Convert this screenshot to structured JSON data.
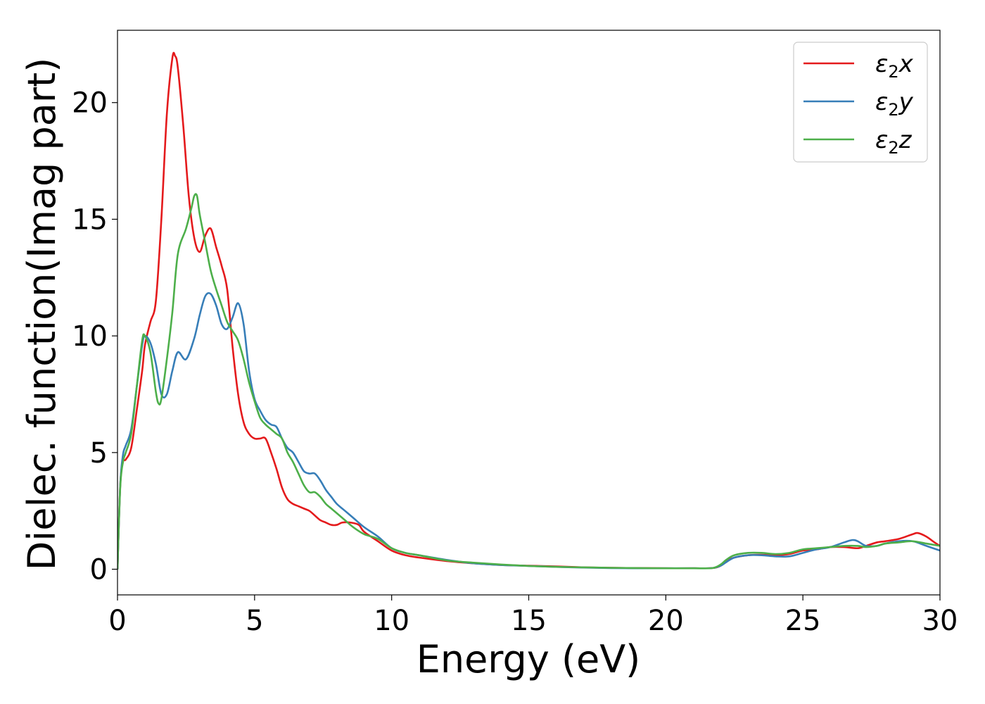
{
  "chart_data": {
    "type": "line",
    "xlabel": "Energy (eV)",
    "ylabel": "Dielec. function(Imag part)",
    "xlim": [
      0,
      30
    ],
    "ylim": [
      -1.1,
      23.1
    ],
    "xticks": [
      0,
      5,
      10,
      15,
      20,
      25,
      30
    ],
    "yticks": [
      0,
      5,
      10,
      15,
      20
    ],
    "grid": false,
    "legend_position": "top-right",
    "series": [
      {
        "name": "ε₂x",
        "legend": {
          "base": "ε",
          "sub": "2",
          "letter": "x"
        },
        "color": "#e41a1c",
        "x": [
          0,
          0.1,
          0.2,
          0.3,
          0.5,
          0.7,
          0.9,
          1.0,
          1.2,
          1.4,
          1.6,
          1.8,
          2.0,
          2.1,
          2.2,
          2.4,
          2.6,
          2.8,
          3.0,
          3.2,
          3.4,
          3.6,
          3.8,
          4.0,
          4.2,
          4.4,
          4.6,
          4.8,
          5.0,
          5.2,
          5.4,
          5.6,
          5.8,
          6.0,
          6.2,
          6.4,
          6.6,
          6.8,
          7.0,
          7.2,
          7.4,
          7.6,
          7.8,
          8.0,
          8.2,
          8.5,
          8.8,
          9.0,
          9.5,
          10.0,
          10.5,
          11.0,
          12.0,
          13.0,
          14.0,
          15.0,
          16.0,
          17.0,
          18.0,
          19.0,
          20.0,
          21.0,
          21.7,
          22.0,
          22.2,
          22.5,
          23.0,
          23.5,
          24.0,
          24.5,
          25.0,
          25.5,
          26.0,
          26.5,
          27.0,
          27.3,
          27.7,
          28.0,
          28.5,
          29.0,
          29.2,
          29.5,
          29.8,
          30.0
        ],
        "y": [
          0,
          3.6,
          4.6,
          4.7,
          5.2,
          6.8,
          8.5,
          9.6,
          10.6,
          11.5,
          15.0,
          19.5,
          21.9,
          22.0,
          21.5,
          19.0,
          16.0,
          14.2,
          13.6,
          14.3,
          14.6,
          13.8,
          13.0,
          12.0,
          9.5,
          7.5,
          6.3,
          5.8,
          5.6,
          5.6,
          5.6,
          5.0,
          4.3,
          3.5,
          3.0,
          2.8,
          2.7,
          2.6,
          2.5,
          2.3,
          2.1,
          2.0,
          1.9,
          1.9,
          2.0,
          2.0,
          1.9,
          1.6,
          1.2,
          0.8,
          0.6,
          0.5,
          0.35,
          0.25,
          0.18,
          0.15,
          0.12,
          0.08,
          0.06,
          0.05,
          0.04,
          0.04,
          0.05,
          0.15,
          0.35,
          0.5,
          0.6,
          0.62,
          0.6,
          0.65,
          0.8,
          0.85,
          0.95,
          0.95,
          0.9,
          1.0,
          1.15,
          1.2,
          1.3,
          1.5,
          1.55,
          1.4,
          1.15,
          1.0
        ]
      },
      {
        "name": "ε₂y",
        "legend": {
          "base": "ε",
          "sub": "2",
          "letter": "y"
        },
        "color": "#377eb8",
        "x": [
          0,
          0.1,
          0.2,
          0.3,
          0.5,
          0.7,
          0.9,
          1.0,
          1.2,
          1.4,
          1.6,
          1.8,
          2.0,
          2.2,
          2.5,
          2.8,
          3.0,
          3.2,
          3.4,
          3.6,
          3.8,
          4.0,
          4.2,
          4.4,
          4.6,
          4.8,
          5.0,
          5.2,
          5.4,
          5.6,
          5.8,
          6.0,
          6.2,
          6.4,
          6.6,
          6.8,
          7.0,
          7.2,
          7.4,
          7.6,
          7.8,
          8.0,
          8.3,
          8.6,
          9.0,
          9.5,
          10.0,
          10.5,
          11.0,
          12.0,
          13.0,
          14.0,
          15.0,
          16.0,
          17.0,
          18.0,
          19.0,
          20.0,
          21.0,
          21.7,
          22.0,
          22.2,
          22.5,
          23.0,
          23.5,
          24.0,
          24.5,
          25.0,
          25.5,
          26.0,
          26.5,
          26.8,
          27.0,
          27.3,
          27.7,
          28.0,
          28.5,
          29.0,
          29.5,
          30.0
        ],
        "y": [
          0,
          3.6,
          4.9,
          5.3,
          6.0,
          7.8,
          9.6,
          10.0,
          9.7,
          8.8,
          7.5,
          7.5,
          8.5,
          9.3,
          9.0,
          9.9,
          10.9,
          11.7,
          11.8,
          11.3,
          10.5,
          10.3,
          10.8,
          11.4,
          10.5,
          8.5,
          7.3,
          6.8,
          6.4,
          6.2,
          6.1,
          5.6,
          5.2,
          5.0,
          4.6,
          4.2,
          4.1,
          4.1,
          3.8,
          3.4,
          3.1,
          2.8,
          2.5,
          2.2,
          1.8,
          1.4,
          0.9,
          0.7,
          0.6,
          0.4,
          0.25,
          0.18,
          0.14,
          0.1,
          0.07,
          0.05,
          0.04,
          0.04,
          0.04,
          0.05,
          0.15,
          0.3,
          0.5,
          0.6,
          0.6,
          0.55,
          0.55,
          0.7,
          0.85,
          0.95,
          1.15,
          1.25,
          1.2,
          1.0,
          1.0,
          1.1,
          1.2,
          1.2,
          1.0,
          0.8
        ]
      },
      {
        "name": "ε₂z",
        "legend": {
          "base": "ε",
          "sub": "2",
          "letter": "z"
        },
        "color": "#4daf4a",
        "x": [
          0,
          0.1,
          0.2,
          0.3,
          0.5,
          0.7,
          0.9,
          1.0,
          1.2,
          1.4,
          1.5,
          1.6,
          1.8,
          2.0,
          2.2,
          2.5,
          2.7,
          2.8,
          2.9,
          3.0,
          3.2,
          3.4,
          3.6,
          3.8,
          4.0,
          4.2,
          4.4,
          4.6,
          4.8,
          5.0,
          5.2,
          5.4,
          5.6,
          5.8,
          6.0,
          6.2,
          6.4,
          6.6,
          6.8,
          7.0,
          7.2,
          7.4,
          7.6,
          7.8,
          8.0,
          8.3,
          8.6,
          9.0,
          9.5,
          10.0,
          10.5,
          11.0,
          12.0,
          13.0,
          14.0,
          15.0,
          16.0,
          17.0,
          18.0,
          19.0,
          20.0,
          21.0,
          21.7,
          22.0,
          22.2,
          22.5,
          23.0,
          23.5,
          24.0,
          24.5,
          25.0,
          25.5,
          26.0,
          26.5,
          27.0,
          27.3,
          27.7,
          28.0,
          28.5,
          29.0,
          29.5,
          30.0
        ],
        "y": [
          0,
          3.5,
          4.6,
          5.0,
          5.8,
          7.8,
          9.8,
          10.0,
          9.3,
          7.6,
          7.1,
          7.3,
          9.0,
          11.0,
          13.5,
          14.6,
          15.5,
          16.0,
          16.0,
          15.2,
          14.0,
          12.8,
          12.0,
          11.3,
          10.6,
          10.2,
          9.8,
          9.0,
          8.0,
          7.2,
          6.5,
          6.2,
          6.0,
          5.8,
          5.6,
          5.0,
          4.6,
          4.1,
          3.6,
          3.3,
          3.3,
          3.1,
          2.8,
          2.6,
          2.4,
          2.1,
          1.8,
          1.5,
          1.3,
          0.9,
          0.7,
          0.6,
          0.38,
          0.28,
          0.2,
          0.14,
          0.1,
          0.08,
          0.06,
          0.05,
          0.04,
          0.04,
          0.05,
          0.2,
          0.4,
          0.6,
          0.7,
          0.7,
          0.65,
          0.7,
          0.85,
          0.9,
          0.95,
          1.0,
          1.0,
          0.95,
          1.0,
          1.1,
          1.15,
          1.2,
          1.1,
          1.0
        ]
      }
    ]
  }
}
